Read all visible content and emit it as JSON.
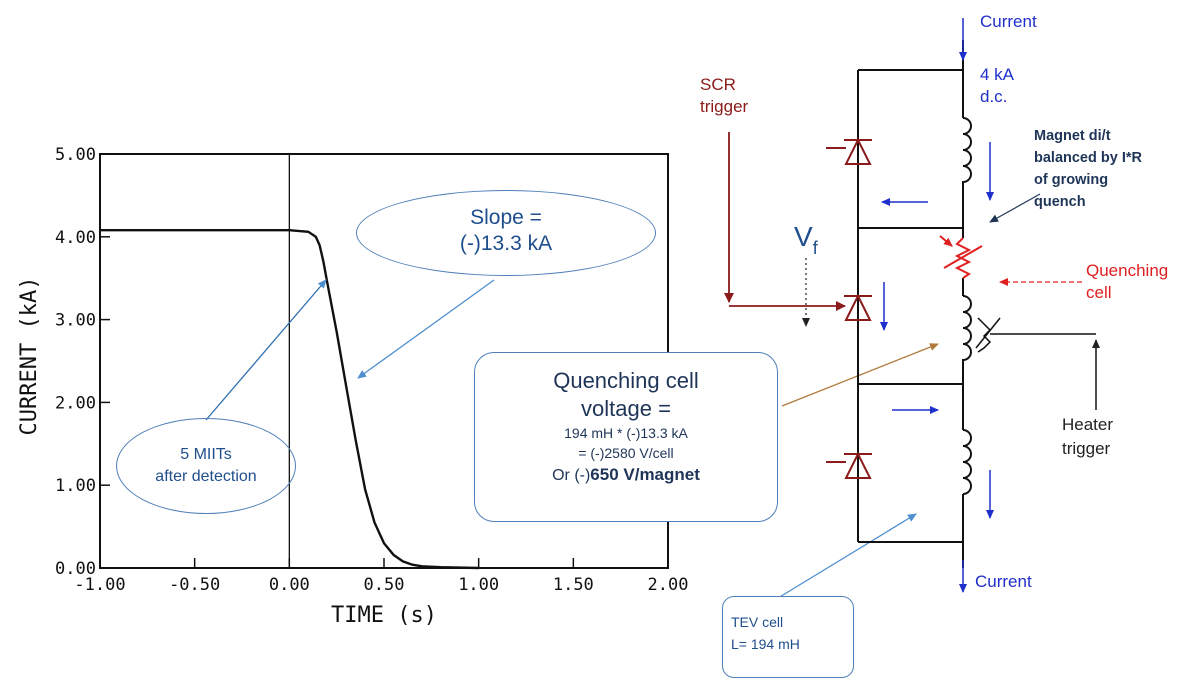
{
  "chart_data": {
    "type": "line",
    "xlabel": "TIME (s)",
    "ylabel": "CURRENT (kA)",
    "xlim": [
      -1.0,
      2.0
    ],
    "ylim": [
      0.0,
      5.0
    ],
    "x_ticks": [
      "-1.00",
      "-0.50",
      "0.00",
      "0.50",
      "1.00",
      "1.50",
      "2.00"
    ],
    "y_ticks": [
      "0.00",
      "1.00",
      "2.00",
      "3.00",
      "4.00",
      "5.00"
    ],
    "grid": false,
    "vertical_reference_line_x": 0.0,
    "series": [
      {
        "x": [
          -1.0,
          0.0,
          0.1,
          0.14,
          0.16,
          0.18,
          0.2,
          0.25,
          0.3,
          0.35,
          0.4,
          0.45,
          0.5,
          0.55,
          0.6,
          0.65,
          0.7,
          0.8,
          1.0
        ],
        "y": [
          4.08,
          4.08,
          4.06,
          4.0,
          3.9,
          3.7,
          3.45,
          2.85,
          2.2,
          1.55,
          0.95,
          0.55,
          0.3,
          0.16,
          0.08,
          0.04,
          0.02,
          0.01,
          0.0
        ]
      }
    ]
  },
  "annotations": {
    "slope_line1": "Slope =",
    "slope_line2": "(-)13.3 kA",
    "miits_line1": "5 MIITs",
    "miits_line2": "after detection",
    "qv_line1": "Quenching cell",
    "qv_line2": "voltage =",
    "qv_line3": "194 mH * (-)13.3 kA",
    "qv_line4": "= (-)2580 V/cell",
    "qv_line5_prefix": "Or (-)",
    "qv_line5_bold": "650 V/magnet",
    "tev_line1": "TEV cell",
    "tev_line2": "L= 194 mH"
  },
  "circuit": {
    "current_top": "Current",
    "current_bottom": "Current",
    "dc_line1": "4 kA",
    "dc_line2": "d.c.",
    "scr_line1": "SCR",
    "scr_line2": "trigger",
    "vf_main": "V",
    "vf_sub": "f",
    "magnet_line1": "Magnet di/t",
    "magnet_line2": "balanced by I*R",
    "magnet_line3": "of growing",
    "magnet_line4": "quench",
    "quenching_line1": "Quenching",
    "quenching_line2": "cell",
    "heater_line1": "Heater",
    "heater_line2": "trigger"
  },
  "colors": {
    "blue": "#1f2fcc",
    "darkred": "#8b1a1a",
    "red": "#e02020",
    "navy": "#1f3558",
    "callout_border": "#4f7fb8",
    "brown": "#b07a3c"
  }
}
